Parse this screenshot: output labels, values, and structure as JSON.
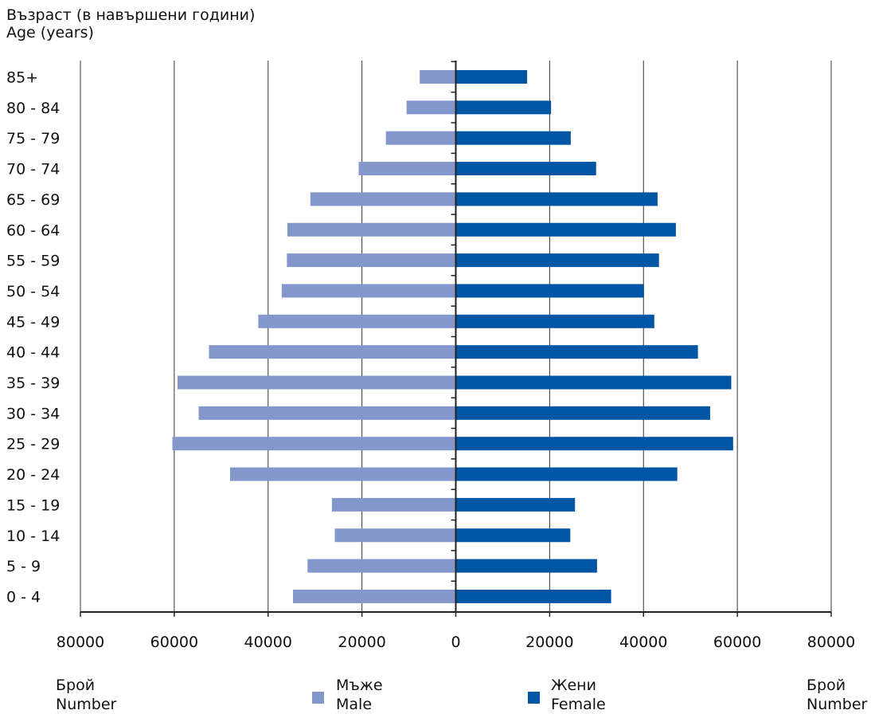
{
  "chart_data": {
    "type": "bar",
    "orientation": "horizontal",
    "layout": "population-pyramid",
    "ylabel_lines": [
      "Възраст (в навършени години)",
      "Age (years)"
    ],
    "categories": [
      "85+",
      "80 - 84",
      "75 - 79",
      "70 - 74",
      "65 - 69",
      "60 - 64",
      "55 - 59",
      "50 - 54",
      "45 - 49",
      "40 - 44",
      "35 - 39",
      "30 - 34",
      "25 - 29",
      "20 - 24",
      "15 - 19",
      "10 - 14",
      "5 - 9",
      "0 - 4"
    ],
    "series": [
      {
        "name": "Мъже / Male",
        "side": "left",
        "color": "#8497cc",
        "values": [
          7700,
          10500,
          14900,
          20700,
          31000,
          35900,
          36000,
          37100,
          42100,
          52600,
          59300,
          54800,
          60400,
          48100,
          26400,
          25800,
          31600,
          34700
        ]
      },
      {
        "name": "Жени / Female",
        "side": "right",
        "color": "#0055a5",
        "values": [
          15200,
          20300,
          24500,
          29900,
          43000,
          46900,
          43300,
          40100,
          42300,
          51600,
          58700,
          54200,
          59100,
          47200,
          25400,
          24400,
          30100,
          33100
        ]
      }
    ],
    "xlim": [
      -80000,
      80000
    ],
    "xticks": [
      -80000,
      -60000,
      -40000,
      -20000,
      0,
      20000,
      40000,
      60000,
      80000
    ],
    "xtick_labels": [
      "80000",
      "60000",
      "40000",
      "20000",
      "0",
      "20000",
      "40000",
      "60000",
      "80000"
    ],
    "grid": "vertical",
    "legend": {
      "position": "bottom",
      "items": [
        {
          "lines": [
            "Мъже",
            "Male"
          ],
          "color": "#8497cc"
        },
        {
          "lines": [
            "Жени",
            "Female"
          ],
          "color": "#0055a5"
        }
      ]
    },
    "axis_caption_lines": [
      "Брой",
      "Number"
    ]
  }
}
